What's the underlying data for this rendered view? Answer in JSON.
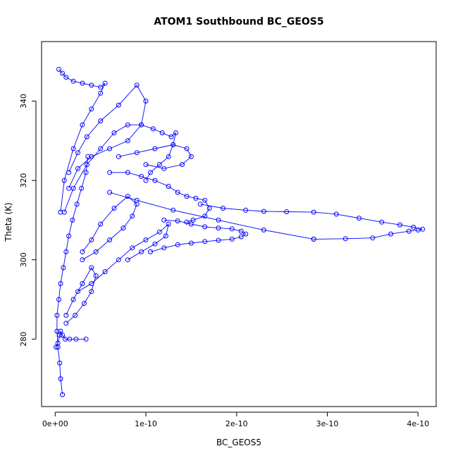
{
  "chart_data": {
    "type": "scatter",
    "title": "ATOM1 Southbound BC_GEOS5",
    "xlabel": "BC_GEOS5",
    "ylabel": "Theta (K)",
    "xlim": [
      -1.5e-11,
      4.2e-10
    ],
    "ylim": [
      263,
      355
    ],
    "x_ticks": [
      0,
      1e-10,
      2e-10,
      3e-10,
      4e-10
    ],
    "x_tick_labels": [
      "0e+00",
      "1e-10",
      "2e-10",
      "3e-10",
      "4e-10"
    ],
    "y_ticks": [
      280,
      300,
      320,
      340
    ],
    "y_tick_labels": [
      "280",
      "300",
      "320",
      "340"
    ],
    "grid": false,
    "legend": "none",
    "marker": "open-circle",
    "connected": true,
    "color": "#0000ff",
    "series": [
      {
        "x": [
          8e-12,
          6e-12,
          5e-12,
          3e-12,
          2e-12,
          2e-12,
          4e-12,
          6e-12,
          9e-12,
          1.2e-11,
          1.5e-11,
          1.9e-11,
          2.4e-11,
          2.9e-11,
          3.4e-11,
          3.6e-11
        ],
        "y": [
          266,
          270,
          274,
          278,
          282,
          286,
          290,
          294,
          298,
          302,
          306,
          310,
          314,
          318,
          322,
          326
        ]
      },
      {
        "x": [
          1e-12,
          3e-12,
          5e-12,
          6e-12,
          8e-12,
          1.1e-11,
          1.6e-11,
          2.3e-11,
          3.4e-11
        ],
        "y": [
          278,
          279,
          281,
          282,
          281,
          280,
          280,
          280,
          280
        ]
      },
      {
        "x": [
          1.5e-11,
          2.5e-11,
          4e-11,
          6e-11,
          8e-11,
          9.5e-11,
          1e-10,
          9e-11,
          7e-11,
          5e-11,
          3.5e-11,
          2.5e-11,
          1.5e-11
        ],
        "y": [
          318,
          323,
          326,
          328,
          330,
          334,
          340,
          344,
          339,
          335,
          331,
          327,
          322
        ]
      },
      {
        "x": [
          1e-11,
          2e-11,
          3.5e-11,
          5e-11,
          6.5e-11,
          8e-11,
          9.5e-11,
          1.08e-10,
          1.18e-10,
          1.28e-10,
          1.33e-10,
          1.3e-10,
          1.25e-10,
          1.15e-10,
          1.05e-10,
          1e-10
        ],
        "y": [
          312,
          318,
          324,
          328,
          332,
          334,
          334,
          333,
          332,
          331,
          332,
          329,
          326,
          324,
          322,
          320
        ]
      },
      {
        "x": [
          6e-11,
          8e-11,
          9.5e-11,
          1.1e-10,
          1.25e-10,
          1.35e-10,
          1.45e-10,
          1.55e-10,
          1.65e-10,
          1.7e-10,
          1.65e-10,
          1.52e-10,
          1.45e-10
        ],
        "y": [
          322,
          322,
          321,
          320,
          318.5,
          317,
          316,
          315.5,
          315,
          313,
          311,
          310,
          309.5
        ]
      },
      {
        "x": [
          1.05e-10,
          1.2e-10,
          1.35e-10,
          1.5e-10,
          1.65e-10,
          1.8e-10,
          1.95e-10,
          2.05e-10,
          2.1e-10,
          2.05e-10,
          1.95e-10,
          1.8e-10,
          1.65e-10,
          1.5e-10,
          1.35e-10,
          1.2e-10
        ],
        "y": [
          302,
          303,
          303.8,
          304.2,
          304.6,
          304.9,
          305.2,
          305.8,
          306.5,
          307.2,
          307.8,
          308,
          308.3,
          309,
          309.8,
          310
        ]
      },
      {
        "x": [
          1.6e-10,
          1.85e-10,
          2.1e-10,
          2.3e-10,
          2.55e-10,
          2.85e-10,
          3.1e-10,
          3.35e-10,
          3.6e-10,
          3.8e-10,
          3.95e-10,
          4.05e-10,
          4e-10,
          3.9e-10,
          3.7e-10,
          3.5e-10,
          3.2e-10,
          2.85e-10
        ],
        "y": [
          314,
          313,
          312.5,
          312.2,
          312.1,
          312,
          311.5,
          310.5,
          309.5,
          308.8,
          308.2,
          307.7,
          307.5,
          307.2,
          306.5,
          305.5,
          305.3,
          305.2
        ]
      },
      {
        "x": [
          2.85e-10,
          2.3e-10,
          1.8e-10,
          1.3e-10,
          9e-11,
          6e-11
        ],
        "y": [
          305.2,
          307.5,
          310,
          312.5,
          315,
          317
        ]
      },
      {
        "x": [
          4e-12,
          8e-12,
          1.2e-11,
          2e-11,
          3e-11,
          4e-11,
          5e-11,
          5.5e-11,
          5e-11,
          4e-11,
          3e-11,
          2e-11,
          1e-11,
          6e-12
        ],
        "y": [
          348,
          347,
          346,
          345,
          344.5,
          344,
          343.5,
          344.5,
          342,
          338,
          334,
          328,
          320,
          312
        ]
      },
      {
        "x": [
          3e-11,
          4.5e-11,
          6e-11,
          7.5e-11,
          8.5e-11,
          9e-11,
          8e-11,
          6.5e-11,
          5e-11,
          4e-11,
          3e-11
        ],
        "y": [
          300,
          302,
          305,
          308,
          311,
          314,
          316,
          313,
          309,
          305,
          302
        ]
      },
      {
        "x": [
          2.5e-11,
          4e-11,
          5.5e-11,
          7e-11,
          8.5e-11,
          1e-10,
          1.15e-10,
          1.25e-10,
          1.22e-10,
          1.1e-10,
          9.5e-11,
          8e-11
        ],
        "y": [
          292,
          294,
          297,
          300,
          303,
          305,
          307,
          309,
          306,
          304,
          302,
          300
        ]
      },
      {
        "x": [
          1.2e-11,
          2.2e-11,
          3.2e-11,
          4e-11,
          4.5e-11,
          4e-11,
          3e-11,
          2e-11,
          1.2e-11
        ],
        "y": [
          284,
          286,
          289,
          292,
          296,
          298,
          294,
          290,
          286
        ]
      },
      {
        "x": [
          7e-11,
          9e-11,
          1.1e-10,
          1.3e-10,
          1.45e-10,
          1.5e-10,
          1.4e-10,
          1.2e-10,
          1e-10
        ],
        "y": [
          326,
          327,
          328,
          329,
          328,
          326,
          324,
          323,
          324
        ]
      }
    ]
  }
}
